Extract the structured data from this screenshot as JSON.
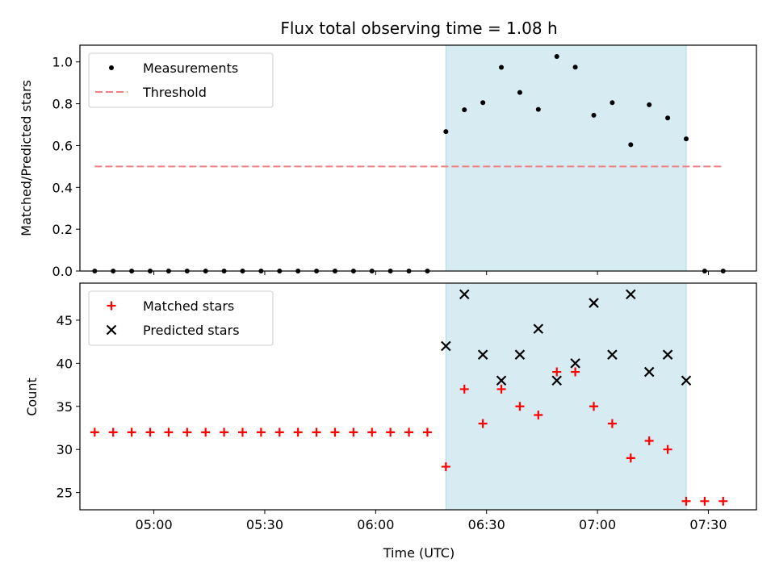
{
  "chart_data": {
    "type": "scatter",
    "title": "Flux total observing time = 1.08 h",
    "xlabel": "Time (UTC)",
    "x_tick_labels": [
      "05:00",
      "05:30",
      "06:00",
      "06:30",
      "07:00",
      "07:30"
    ],
    "x_ticks": [
      "05:00",
      "05:30",
      "06:00",
      "06:30",
      "07:00",
      "07:30"
    ],
    "xlim": [
      "04:40",
      "07:43"
    ],
    "highlight_span": [
      "06:19",
      "07:24"
    ],
    "times": [
      "04:44",
      "04:49",
      "04:54",
      "04:59",
      "05:04",
      "05:09",
      "05:14",
      "05:19",
      "05:24",
      "05:29",
      "05:34",
      "05:39",
      "05:44",
      "05:49",
      "05:54",
      "05:59",
      "06:04",
      "06:09",
      "06:14",
      "06:19",
      "06:24",
      "06:29",
      "06:34",
      "06:39",
      "06:44",
      "06:49",
      "06:54",
      "06:59",
      "07:04",
      "07:09",
      "07:14",
      "07:19",
      "07:24",
      "07:29",
      "07:34"
    ],
    "panels": [
      {
        "name": "top",
        "ylabel": "Matched/Predicted stars",
        "ylim": [
          0,
          1.08
        ],
        "y_ticks": [
          0.0,
          0.2,
          0.4,
          0.6,
          0.8,
          1.0
        ],
        "y_tick_labels": [
          "0.0",
          "0.2",
          "0.4",
          "0.6",
          "0.8",
          "1.0"
        ],
        "legend_position": "upper-left",
        "series": [
          {
            "name": "Measurements",
            "marker": "dot",
            "color": "#000000",
            "x": [
              "04:44",
              "04:49",
              "04:54",
              "04:59",
              "05:04",
              "05:09",
              "05:14",
              "05:19",
              "05:24",
              "05:29",
              "05:34",
              "05:39",
              "05:44",
              "05:49",
              "05:54",
              "05:59",
              "06:04",
              "06:09",
              "06:14",
              "06:19",
              "06:24",
              "06:29",
              "06:34",
              "06:39",
              "06:44",
              "06:49",
              "06:54",
              "06:59",
              "07:04",
              "07:09",
              "07:14",
              "07:19",
              "07:24",
              "07:29",
              "07:34"
            ],
            "values": [
              0,
              0,
              0,
              0,
              0,
              0,
              0,
              0,
              0,
              0,
              0,
              0,
              0,
              0,
              0,
              0,
              0,
              0,
              0,
              0.667,
              0.771,
              0.805,
              0.974,
              0.854,
              0.773,
              1.026,
              0.975,
              0.745,
              0.805,
              0.604,
              0.795,
              0.732,
              0.632,
              0,
              0
            ]
          },
          {
            "name": "Threshold",
            "marker": "dashed-line",
            "color": "#f08080",
            "x": [
              "04:44",
              "07:34"
            ],
            "values": [
              0.5,
              0.5
            ]
          }
        ]
      },
      {
        "name": "bottom",
        "ylabel": "Count",
        "ylim": [
          23,
          49.3
        ],
        "y_ticks": [
          25,
          30,
          35,
          40,
          45
        ],
        "y_tick_labels": [
          "25",
          "30",
          "35",
          "40",
          "45"
        ],
        "legend_position": "upper-left",
        "series": [
          {
            "name": "Matched stars",
            "marker": "plus",
            "color": "#ff0000",
            "x": [
              "04:44",
              "04:49",
              "04:54",
              "04:59",
              "05:04",
              "05:09",
              "05:14",
              "05:19",
              "05:24",
              "05:29",
              "05:34",
              "05:39",
              "05:44",
              "05:49",
              "05:54",
              "05:59",
              "06:04",
              "06:09",
              "06:14",
              "06:19",
              "06:24",
              "06:29",
              "06:34",
              "06:39",
              "06:44",
              "06:49",
              "06:54",
              "06:59",
              "07:04",
              "07:09",
              "07:14",
              "07:19",
              "07:24",
              "07:29",
              "07:34"
            ],
            "values": [
              32,
              32,
              32,
              32,
              32,
              32,
              32,
              32,
              32,
              32,
              32,
              32,
              32,
              32,
              32,
              32,
              32,
              32,
              32,
              28,
              37,
              33,
              37,
              35,
              34,
              39,
              39,
              35,
              33,
              29,
              31,
              30,
              24,
              24,
              24
            ]
          },
          {
            "name": "Predicted stars",
            "marker": "x",
            "color": "#000000",
            "x": [
              "06:19",
              "06:24",
              "06:29",
              "06:34",
              "06:39",
              "06:44",
              "06:49",
              "06:54",
              "06:59",
              "07:04",
              "07:09",
              "07:14",
              "07:19",
              "07:24"
            ],
            "values": [
              42,
              48,
              41,
              38,
              41,
              44,
              38,
              40,
              47,
              41,
              48,
              39,
              41,
              38
            ]
          }
        ]
      }
    ]
  }
}
